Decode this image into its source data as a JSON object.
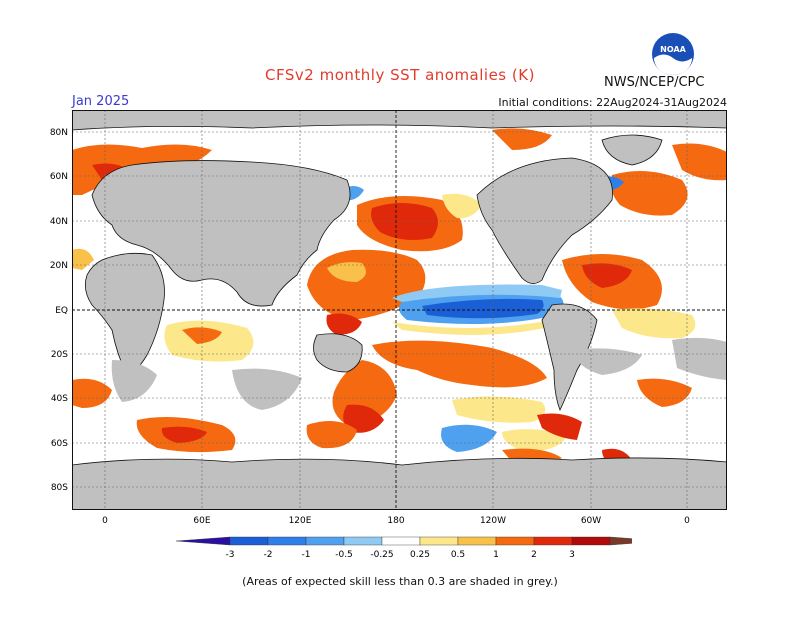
{
  "header": {
    "title": "CFSv2 monthly SST anomalies (K)",
    "agency": "NWS/NCEP/CPC",
    "logo_text": "NOAA",
    "month": "Jan 2025",
    "initial_conditions": "Initial conditions: 22Aug2024-31Aug2024"
  },
  "map": {
    "lat_labels": [
      "80N",
      "60N",
      "40N",
      "20N",
      "EQ",
      "20S",
      "40S",
      "60S",
      "80S"
    ],
    "lon_labels": [
      "0",
      "60E",
      "120E",
      "180",
      "120W",
      "60W",
      "0"
    ],
    "land_color": "#c0c0c0",
    "reference_lines": [
      "equator",
      "dateline"
    ]
  },
  "colorbar": {
    "ticks": [
      "-3",
      "-2",
      "-1",
      "-0.5",
      "-0.25",
      "0.25",
      "0.5",
      "1",
      "2",
      "3"
    ],
    "colors": [
      "#2a0fa0",
      "#1b5fd6",
      "#2e7fe8",
      "#4fa0ef",
      "#8fcaf4",
      "#ffffff",
      "#fce78a",
      "#f9c04a",
      "#f56a10",
      "#e0290a",
      "#b00a0a",
      "#7a3a2a"
    ]
  },
  "footnote": "(Areas of expected skill less than 0.3 are shaded in grey.)"
}
